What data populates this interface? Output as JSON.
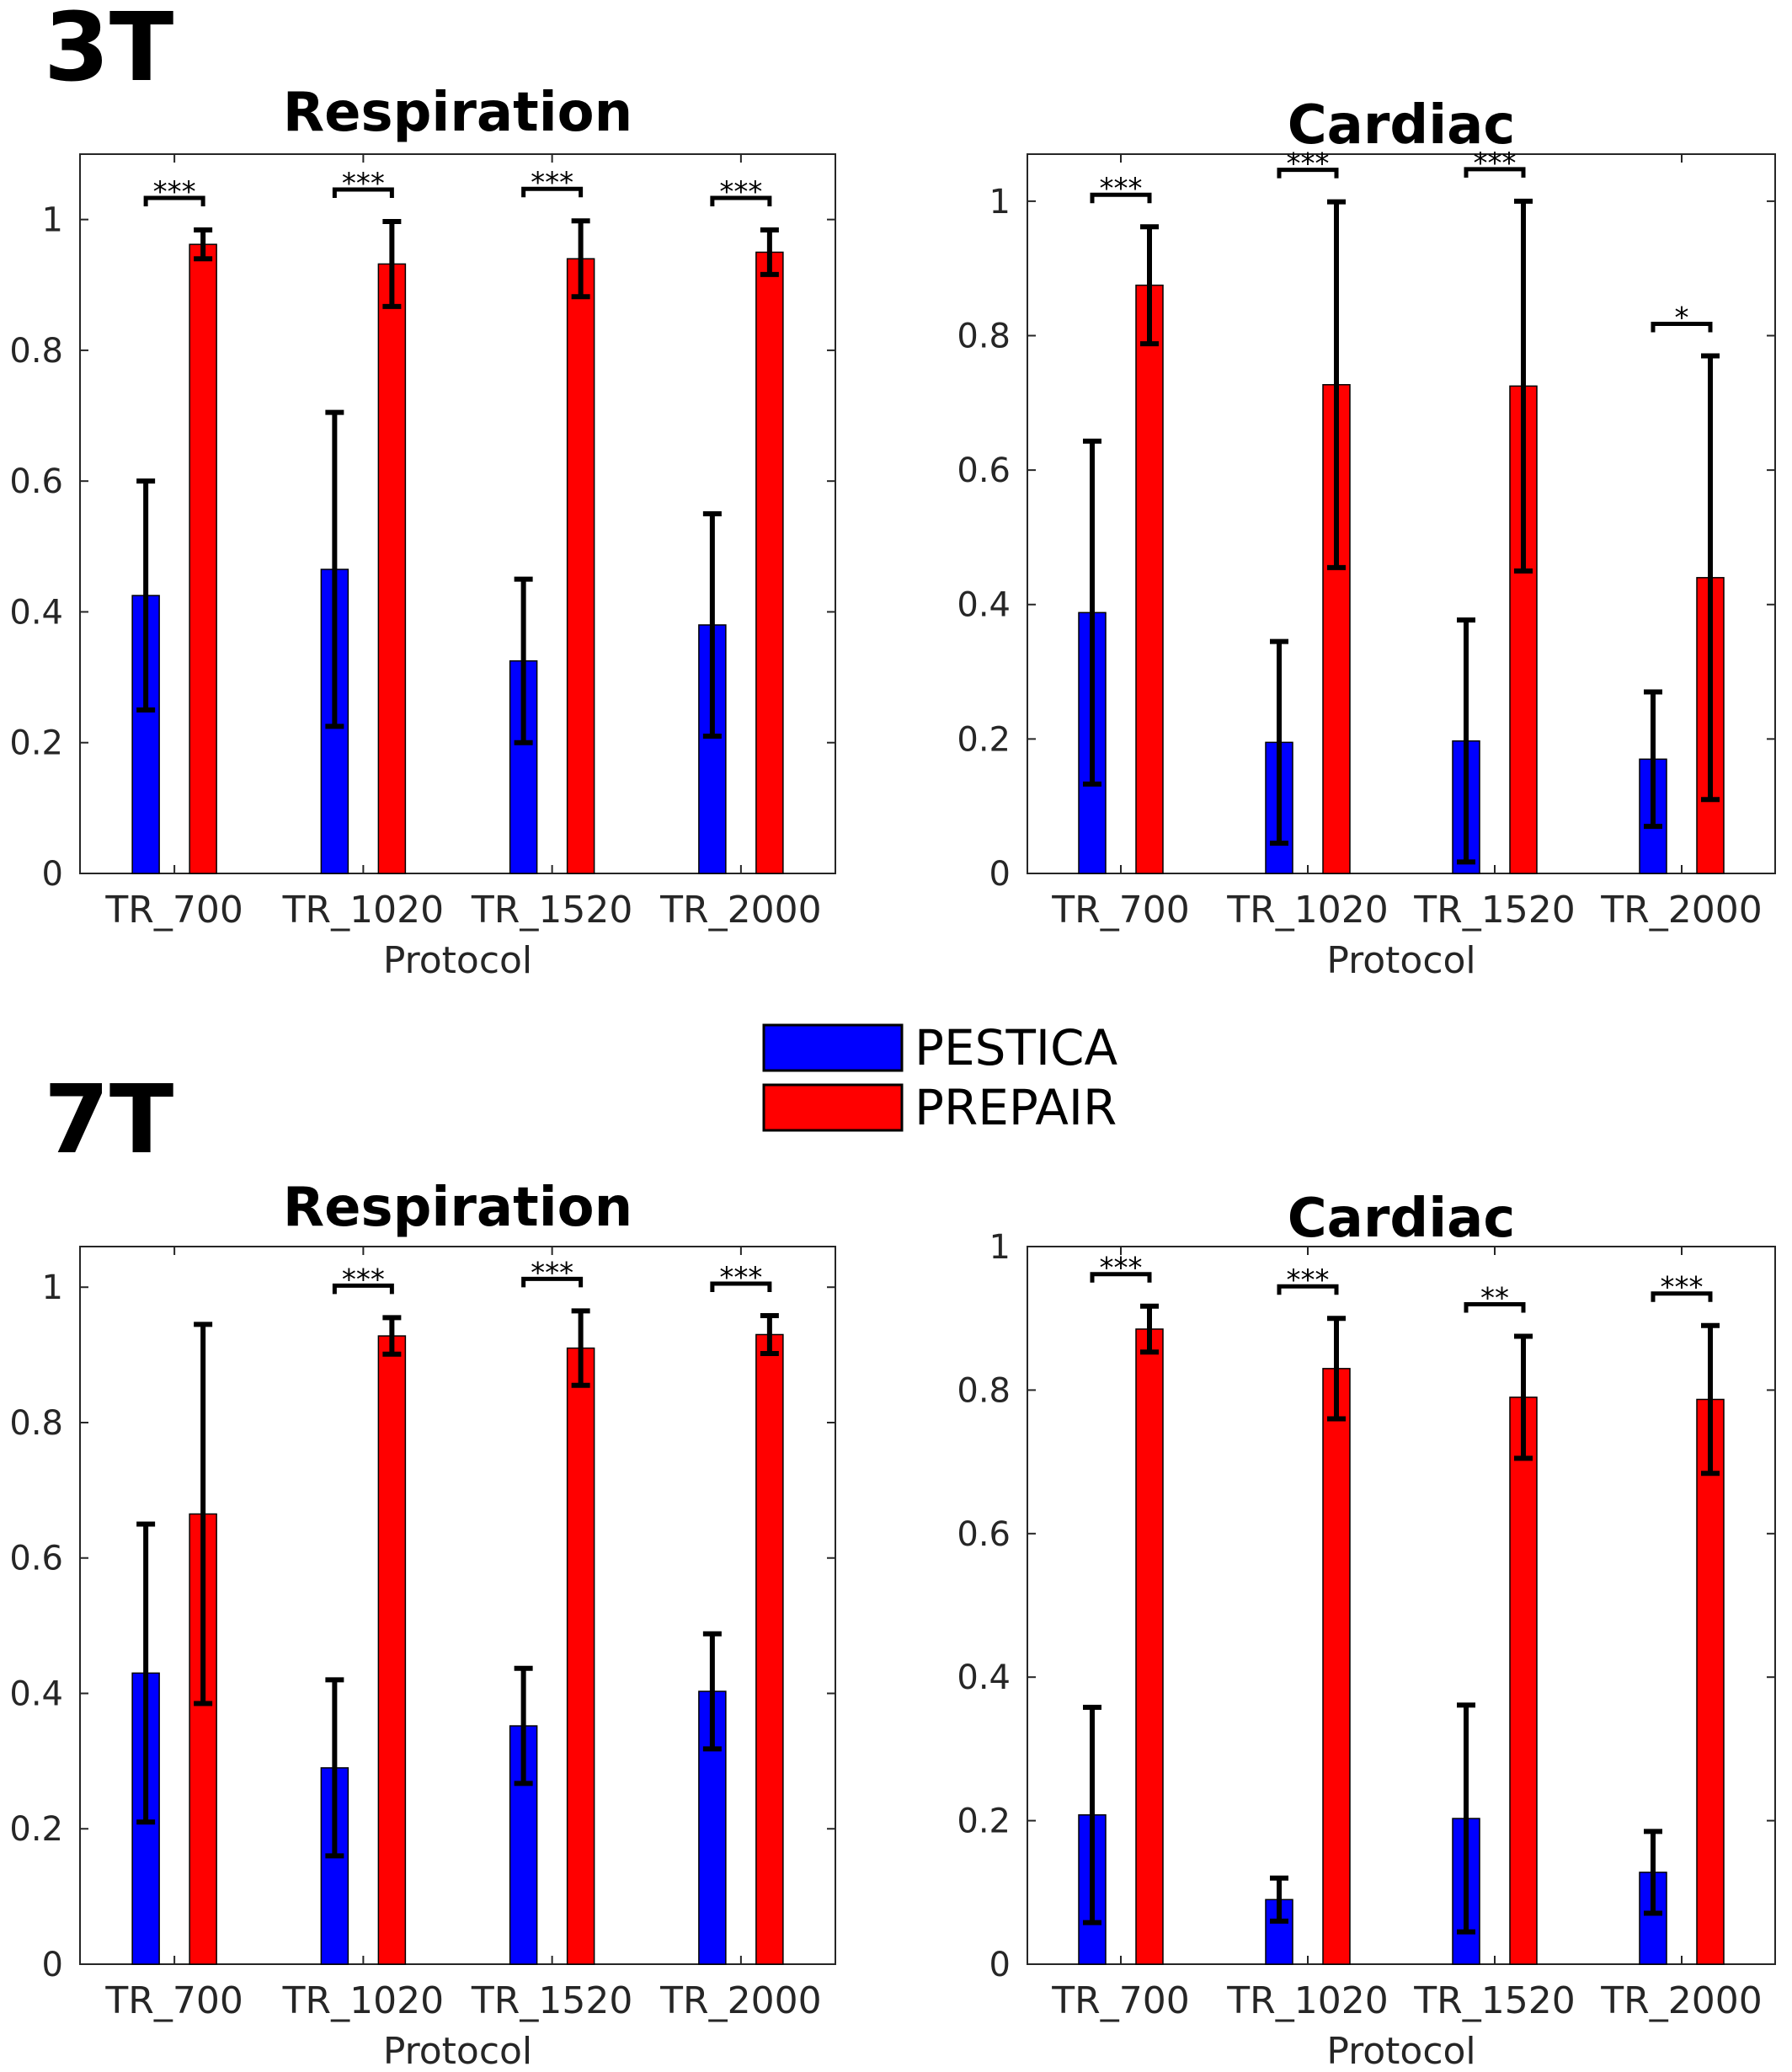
{
  "colors": {
    "PESTICA": "#0000ff",
    "PREPAIR": "#ff0000"
  },
  "legend": [
    {
      "name": "PESTICA",
      "color": "#0000ff"
    },
    {
      "name": "PREPAIR",
      "color": "#ff0000"
    }
  ],
  "groups": [
    {
      "label": "3T"
    },
    {
      "label": "7T"
    }
  ],
  "chart_data": [
    {
      "type": "bar",
      "group": "3T",
      "title": "Respiration",
      "xlabel": "Protocol",
      "ylabel": "",
      "categories": [
        "TR_700",
        "TR_1020",
        "TR_1520",
        "TR_2000"
      ],
      "ylim": [
        0,
        1.1
      ],
      "yticks": [
        "0",
        "0.2",
        "0.4",
        "0.6",
        "0.8",
        "1"
      ],
      "series": [
        {
          "name": "PESTICA",
          "values": [
            0.425,
            0.465,
            0.325,
            0.38
          ],
          "err": [
            0.175,
            0.24,
            0.125,
            0.17
          ]
        },
        {
          "name": "PREPAIR",
          "values": [
            0.962,
            0.932,
            0.94,
            0.95
          ],
          "err": [
            0.022,
            0.065,
            0.058,
            0.034
          ]
        }
      ],
      "significance": [
        "***",
        "***",
        "***",
        "***"
      ]
    },
    {
      "type": "bar",
      "group": "3T",
      "title": "Cardiac",
      "xlabel": "Protocol",
      "ylabel": "",
      "categories": [
        "TR_700",
        "TR_1020",
        "TR_1520",
        "TR_2000"
      ],
      "ylim": [
        0,
        1.07
      ],
      "yticks": [
        "0",
        "0.2",
        "0.4",
        "0.6",
        "0.8",
        "1"
      ],
      "series": [
        {
          "name": "PESTICA",
          "values": [
            0.388,
            0.195,
            0.197,
            0.17
          ],
          "err": [
            0.255,
            0.15,
            0.18,
            0.1
          ]
        },
        {
          "name": "PREPAIR",
          "values": [
            0.875,
            0.727,
            0.725,
            0.44
          ],
          "err": [
            0.087,
            0.272,
            0.275,
            0.33
          ]
        }
      ],
      "significance": [
        "***",
        "***",
        "***",
        "*"
      ]
    },
    {
      "type": "bar",
      "group": "7T",
      "title": "Respiration",
      "xlabel": "Protocol",
      "ylabel": "",
      "categories": [
        "TR_700",
        "TR_1020",
        "TR_1520",
        "TR_2000"
      ],
      "ylim": [
        0,
        1.06
      ],
      "yticks": [
        "0",
        "0.2",
        "0.4",
        "0.6",
        "0.8",
        "1"
      ],
      "series": [
        {
          "name": "PESTICA",
          "values": [
            0.43,
            0.29,
            0.352,
            0.403
          ],
          "err": [
            0.22,
            0.13,
            0.085,
            0.085
          ]
        },
        {
          "name": "PREPAIR",
          "values": [
            0.665,
            0.928,
            0.91,
            0.93
          ],
          "err": [
            0.28,
            0.027,
            0.055,
            0.028
          ]
        }
      ],
      "significance": [
        "",
        "***",
        "***",
        "***"
      ]
    },
    {
      "type": "bar",
      "group": "7T",
      "title": "Cardiac",
      "xlabel": "Protocol",
      "ylabel": "",
      "categories": [
        "TR_700",
        "TR_1020",
        "TR_1520",
        "TR_2000"
      ],
      "ylim": [
        0,
        1
      ],
      "yticks": [
        "0",
        "0.2",
        "0.4",
        "0.6",
        "0.8",
        "1"
      ],
      "series": [
        {
          "name": "PESTICA",
          "values": [
            0.208,
            0.09,
            0.203,
            0.128
          ],
          "err": [
            0.15,
            0.03,
            0.158,
            0.057
          ]
        },
        {
          "name": "PREPAIR",
          "values": [
            0.885,
            0.83,
            0.79,
            0.787
          ],
          "err": [
            0.032,
            0.07,
            0.085,
            0.103
          ]
        }
      ],
      "significance": [
        "***",
        "***",
        "**",
        "***"
      ]
    }
  ]
}
